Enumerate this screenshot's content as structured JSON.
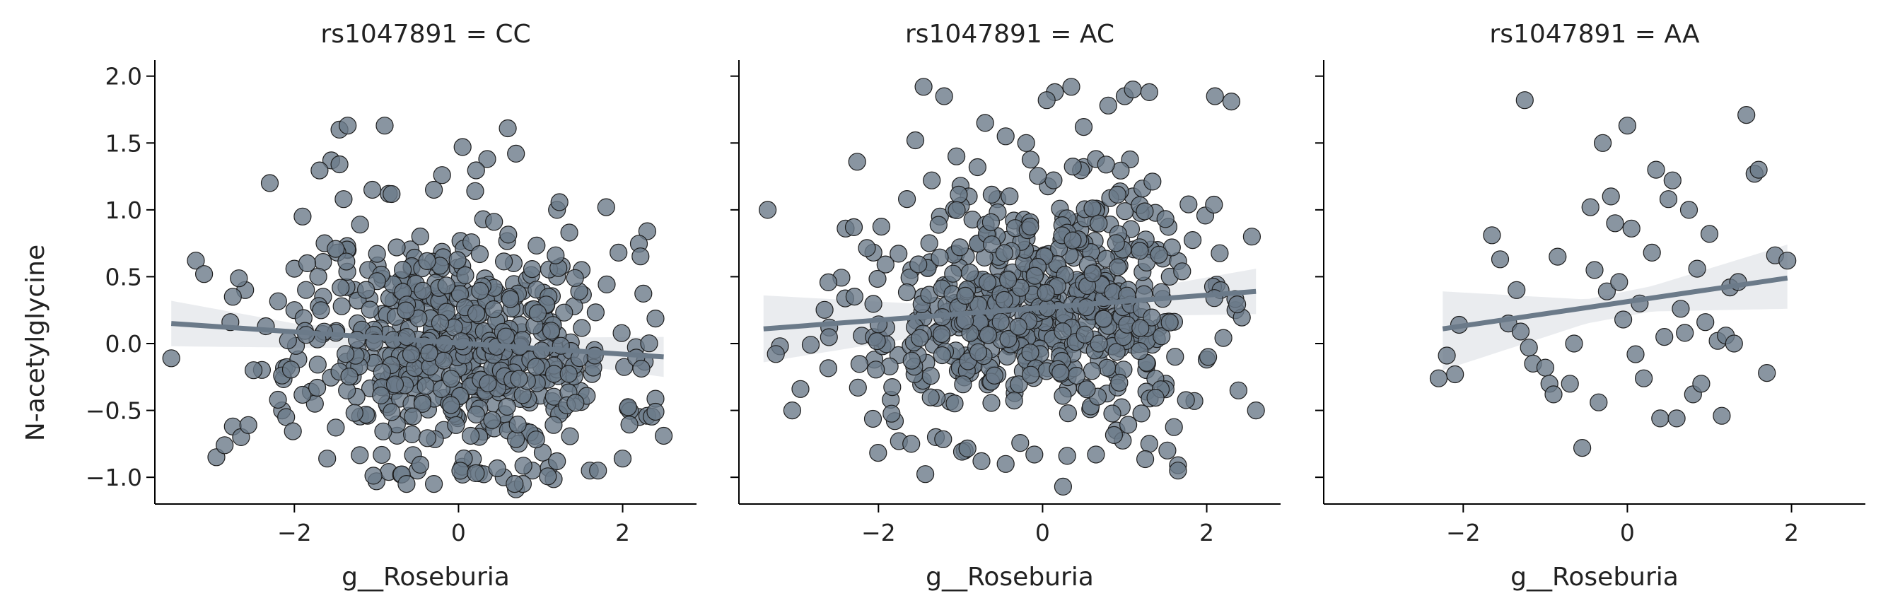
{
  "chart_data": [
    {
      "type": "scatter",
      "title": "rs1047891 = CC",
      "xlabel": "g__Roseburia",
      "ylabel": "N-acetylglycine",
      "xlim": [
        -3.7,
        2.9
      ],
      "ylim": [
        -1.2,
        2.12
      ],
      "xticks": [
        -2,
        0,
        2
      ],
      "xtick_labels": [
        "−2",
        "0",
        "2"
      ],
      "yticks": [
        -1.0,
        -0.5,
        0.0,
        0.5,
        1.0,
        1.5,
        2.0
      ],
      "ytick_labels": [
        "−1.0",
        "−0.5",
        "0.0",
        "0.5",
        "1.0",
        "1.5",
        "2.0"
      ],
      "show_yticklabels": true,
      "marker_color": "#6b7a89",
      "line_color": "#6b7a89",
      "band_color": "#e6e9ec",
      "regression": {
        "x": [
          -3.5,
          2.5
        ],
        "y": [
          0.15,
          -0.1
        ]
      },
      "ci_band": {
        "x": [
          -3.5,
          -2.0,
          0.0,
          2.5
        ],
        "upper": [
          0.32,
          0.15,
          0.04,
          0.05
        ],
        "lower": [
          -0.02,
          -0.03,
          -0.04,
          -0.25
        ]
      },
      "points_seed": 11,
      "n_points": 620,
      "points": [
        [
          -3.5,
          -0.11
        ],
        [
          -3.2,
          0.62
        ],
        [
          -3.1,
          0.52
        ],
        [
          -2.95,
          -0.85
        ],
        [
          -2.85,
          -0.76
        ],
        [
          -2.75,
          -0.62
        ],
        [
          -2.65,
          -0.7
        ],
        [
          -2.6,
          0.4
        ],
        [
          -2.75,
          0.35
        ],
        [
          -2.78,
          0.16
        ],
        [
          -2.3,
          1.2
        ],
        [
          -2.15,
          -0.5
        ],
        [
          -2.2,
          -0.42
        ],
        [
          -2.1,
          -0.55
        ],
        [
          -2.0,
          0.56
        ],
        [
          -2.0,
          0.25
        ],
        [
          -1.9,
          0.95
        ],
        [
          -1.8,
          -0.36
        ],
        [
          -1.75,
          -0.45
        ],
        [
          -1.65,
          0.61
        ],
        [
          -1.65,
          0.35
        ],
        [
          -1.6,
          -0.86
        ],
        [
          -1.55,
          1.37
        ],
        [
          -1.45,
          1.34
        ],
        [
          -1.45,
          1.6
        ],
        [
          -1.35,
          1.63
        ],
        [
          -1.4,
          1.08
        ],
        [
          -1.35,
          0.7
        ],
        [
          -1.2,
          0.89
        ],
        [
          -1.05,
          1.15
        ],
        [
          -0.9,
          1.63
        ],
        [
          -0.85,
          1.12
        ],
        [
          -1.0,
          -1.03
        ],
        [
          -0.85,
          -0.96
        ],
        [
          -0.7,
          -0.98
        ],
        [
          -0.5,
          -0.95
        ],
        [
          -0.3,
          -1.05
        ],
        [
          0.05,
          -0.98
        ],
        [
          0.25,
          -0.97
        ],
        [
          0.7,
          -1.09
        ],
        [
          0.55,
          -1.0
        ],
        [
          0.9,
          -0.95
        ],
        [
          1.1,
          -0.93
        ],
        [
          1.2,
          -0.88
        ],
        [
          1.6,
          -0.95
        ],
        [
          1.7,
          -0.95
        ],
        [
          0.6,
          1.61
        ],
        [
          0.7,
          1.42
        ],
        [
          0.05,
          1.47
        ],
        [
          0.35,
          1.38
        ],
        [
          -0.3,
          1.15
        ],
        [
          -0.2,
          1.26
        ],
        [
          0.3,
          0.93
        ],
        [
          1.2,
          1.0
        ],
        [
          1.8,
          1.02
        ],
        [
          2.3,
          0.84
        ],
        [
          1.95,
          0.68
        ],
        [
          2.0,
          -0.86
        ],
        [
          2.2,
          -0.55
        ],
        [
          2.3,
          -0.54
        ],
        [
          2.5,
          -0.69
        ],
        [
          1.5,
          0.55
        ],
        [
          1.2,
          0.5
        ],
        [
          1.35,
          0.83
        ]
      ]
    },
    {
      "type": "scatter",
      "title": "rs1047891 = AC",
      "xlabel": "g__Roseburia",
      "ylabel": "",
      "xlim": [
        -3.7,
        2.9
      ],
      "ylim": [
        -1.2,
        2.12
      ],
      "xticks": [
        -2,
        0,
        2
      ],
      "xtick_labels": [
        "−2",
        "0",
        "2"
      ],
      "yticks": [
        -1.0,
        -0.5,
        0.0,
        0.5,
        1.0,
        1.5,
        2.0
      ],
      "ytick_labels": [],
      "show_yticklabels": false,
      "marker_color": "#6b7a89",
      "line_color": "#6b7a89",
      "band_color": "#e6e9ec",
      "regression": {
        "x": [
          -3.4,
          2.6
        ],
        "y": [
          0.11,
          0.39
        ]
      },
      "ci_band": {
        "x": [
          -3.4,
          -1.0,
          0.5,
          2.6
        ],
        "upper": [
          0.36,
          0.28,
          0.33,
          0.56
        ],
        "lower": [
          -0.14,
          0.1,
          0.2,
          0.22
        ]
      },
      "points_seed": 22,
      "n_points": 640,
      "points": [
        [
          -3.35,
          1.0
        ],
        [
          -3.2,
          -0.02
        ],
        [
          -3.05,
          -0.5
        ],
        [
          -2.95,
          -0.34
        ],
        [
          -2.6,
          0.12
        ],
        [
          -2.4,
          0.86
        ],
        [
          -2.3,
          0.87
        ],
        [
          -2.25,
          -0.33
        ],
        [
          -2.05,
          -0.12
        ],
        [
          -1.95,
          -0.02
        ],
        [
          -1.85,
          -0.42
        ],
        [
          -1.8,
          -0.58
        ],
        [
          -1.75,
          -0.73
        ],
        [
          -1.6,
          -0.75
        ],
        [
          -1.55,
          1.52
        ],
        [
          -1.45,
          1.92
        ],
        [
          -1.35,
          1.22
        ],
        [
          -1.2,
          1.85
        ],
        [
          -1.05,
          1.4
        ],
        [
          -1.0,
          1.18
        ],
        [
          -0.7,
          1.65
        ],
        [
          -0.45,
          1.55
        ],
        [
          -0.2,
          1.5
        ],
        [
          0.15,
          1.88
        ],
        [
          0.05,
          1.82
        ],
        [
          0.35,
          1.92
        ],
        [
          0.5,
          1.62
        ],
        [
          0.8,
          1.78
        ],
        [
          1.0,
          1.85
        ],
        [
          0.5,
          1.32
        ],
        [
          0.65,
          1.38
        ],
        [
          1.1,
          1.9
        ],
        [
          1.3,
          1.88
        ],
        [
          2.1,
          1.85
        ],
        [
          2.3,
          1.81
        ],
        [
          2.55,
          0.8
        ],
        [
          2.35,
          0.25
        ],
        [
          2.6,
          -0.5
        ],
        [
          1.65,
          -0.91
        ],
        [
          1.65,
          -0.95
        ],
        [
          1.3,
          -0.75
        ],
        [
          0.65,
          -0.83
        ],
        [
          0.3,
          -0.84
        ],
        [
          -0.1,
          -0.83
        ],
        [
          -0.45,
          -0.9
        ],
        [
          -0.95,
          -0.8
        ],
        [
          -1.3,
          -0.7
        ],
        [
          0.25,
          -1.07
        ],
        [
          1.5,
          -0.3
        ],
        [
          1.85,
          -0.43
        ],
        [
          2.0,
          -0.12
        ],
        [
          0.9,
          -0.65
        ],
        [
          -1.6,
          0.55
        ],
        [
          -1.25,
          0.95
        ],
        [
          -0.9,
          1.1
        ],
        [
          0.7,
          1.0
        ],
        [
          1.1,
          1.1
        ],
        [
          1.4,
          0.7
        ],
        [
          1.55,
          0.5
        ],
        [
          -0.35,
          0.92
        ]
      ]
    },
    {
      "type": "scatter",
      "title": "rs1047891 = AA",
      "xlabel": "g__Roseburia",
      "ylabel": "",
      "xlim": [
        -3.7,
        2.9
      ],
      "ylim": [
        -1.2,
        2.12
      ],
      "xticks": [
        -2,
        0,
        2
      ],
      "xtick_labels": [
        "−2",
        "0",
        "2"
      ],
      "yticks": [
        -1.0,
        -0.5,
        0.0,
        0.5,
        1.0,
        1.5,
        2.0
      ],
      "ytick_labels": [],
      "show_yticklabels": false,
      "marker_color": "#6b7a89",
      "line_color": "#6b7a89",
      "band_color": "#e6e9ec",
      "regression": {
        "x": [
          -2.25,
          1.95
        ],
        "y": [
          0.11,
          0.49
        ]
      },
      "ci_band": {
        "x": [
          -2.25,
          -0.5,
          0.3,
          1.95
        ],
        "upper": [
          0.39,
          0.33,
          0.43,
          0.74
        ],
        "lower": [
          -0.2,
          0.15,
          0.24,
          0.26
        ]
      },
      "points_seed": 33,
      "n_points": 60,
      "points": [
        [
          -2.3,
          -0.26
        ],
        [
          -2.2,
          -0.09
        ],
        [
          -2.1,
          -0.23
        ],
        [
          -2.05,
          0.14
        ],
        [
          -1.65,
          0.81
        ],
        [
          -1.55,
          0.63
        ],
        [
          -1.45,
          0.15
        ],
        [
          -1.35,
          0.4
        ],
        [
          -1.3,
          0.09
        ],
        [
          -1.25,
          1.82
        ],
        [
          -1.2,
          -0.03
        ],
        [
          -1.15,
          -0.15
        ],
        [
          -1.0,
          -0.18
        ],
        [
          -0.95,
          -0.3
        ],
        [
          -0.9,
          -0.38
        ],
        [
          -0.85,
          0.65
        ],
        [
          -0.7,
          -0.3
        ],
        [
          -0.65,
          0.0
        ],
        [
          -0.55,
          -0.78
        ],
        [
          -0.45,
          1.02
        ],
        [
          -0.4,
          0.55
        ],
        [
          -0.35,
          -0.44
        ],
        [
          -0.3,
          1.5
        ],
        [
          -0.25,
          0.39
        ],
        [
          -0.2,
          1.1
        ],
        [
          -0.15,
          0.9
        ],
        [
          -0.1,
          0.46
        ],
        [
          -0.05,
          0.18
        ],
        [
          0.0,
          1.63
        ],
        [
          0.05,
          0.86
        ],
        [
          0.1,
          -0.08
        ],
        [
          0.15,
          0.3
        ],
        [
          0.2,
          -0.26
        ],
        [
          0.3,
          0.68
        ],
        [
          0.35,
          1.3
        ],
        [
          0.4,
          -0.56
        ],
        [
          0.45,
          0.05
        ],
        [
          0.5,
          1.08
        ],
        [
          0.55,
          1.22
        ],
        [
          0.6,
          -0.56
        ],
        [
          0.65,
          0.26
        ],
        [
          0.7,
          0.08
        ],
        [
          0.75,
          1.0
        ],
        [
          0.8,
          -0.38
        ],
        [
          0.85,
          0.56
        ],
        [
          0.9,
          -0.3
        ],
        [
          0.95,
          0.16
        ],
        [
          1.0,
          0.82
        ],
        [
          1.1,
          0.02
        ],
        [
          1.15,
          -0.54
        ],
        [
          1.2,
          0.06
        ],
        [
          1.25,
          0.42
        ],
        [
          1.3,
          0.0
        ],
        [
          1.35,
          0.46
        ],
        [
          1.45,
          1.71
        ],
        [
          1.55,
          1.27
        ],
        [
          1.6,
          1.3
        ],
        [
          1.7,
          -0.22
        ],
        [
          1.8,
          0.66
        ],
        [
          1.95,
          0.62
        ]
      ]
    }
  ]
}
